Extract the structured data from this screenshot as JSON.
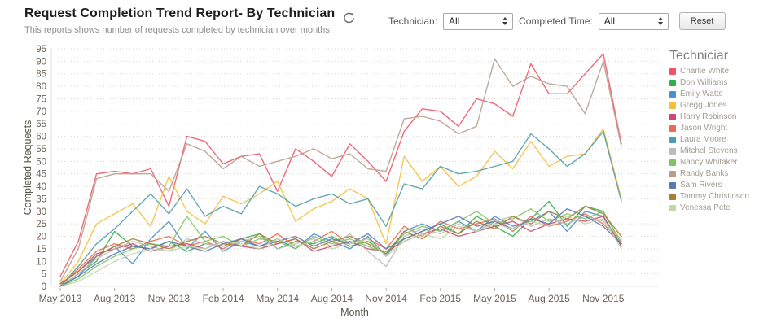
{
  "header": {
    "title": "Request Completion Trend Report- By Technician",
    "subtitle": "This reports shows number of requests completed by technician over months."
  },
  "filters": {
    "technician_label": "Technician:",
    "technician_value": "All",
    "completed_time_label": "Completed Time:",
    "completed_time_value": "All",
    "reset_label": "Reset"
  },
  "legend": {
    "title": "Techniciar",
    "position": "right"
  },
  "icons": {
    "refresh": "refresh-icon",
    "select_spinner": "up-down-arrows"
  },
  "chart_data": {
    "type": "line",
    "title": "",
    "xlabel": "Month",
    "ylabel": "Completed Requests",
    "ylim": [
      0,
      95
    ],
    "ytick_step": 5,
    "grid": "dotted-horizontal",
    "xtick_every": 3,
    "categories": [
      "May 2013",
      "Jun 2013",
      "Jul 2013",
      "Aug 2013",
      "Sep 2013",
      "Oct 2013",
      "Nov 2013",
      "Dec 2013",
      "Jan 2014",
      "Feb 2014",
      "Mar 2014",
      "Apr 2014",
      "May 2014",
      "Jun 2014",
      "Jul 2014",
      "Aug 2014",
      "Sep 2014",
      "Oct 2014",
      "Nov 2014",
      "Dec 2014",
      "Jan 2015",
      "Feb 2015",
      "Mar 2015",
      "Apr 2015",
      "May 2015",
      "Jun 2015",
      "Jul 2015",
      "Aug 2015",
      "Sep 2015",
      "Oct 2015",
      "Nov 2015",
      "Dec 2015"
    ],
    "series": [
      {
        "name": "Charlie White",
        "color": "#ef5366",
        "values": [
          4,
          18,
          45,
          46,
          45,
          47,
          32,
          60,
          58,
          49,
          52,
          53,
          38,
          55,
          50,
          44,
          57,
          50,
          42,
          62,
          71,
          70,
          64,
          75,
          73,
          68,
          89,
          77,
          77,
          85,
          93,
          57
        ]
      },
      {
        "name": "Don Williams",
        "color": "#2eb14c",
        "values": [
          0,
          5,
          10,
          22,
          16,
          15,
          18,
          14,
          17,
          16,
          19,
          21,
          15,
          18,
          17,
          20,
          16,
          18,
          13,
          19,
          22,
          25,
          21,
          28,
          24,
          20,
          27,
          34,
          24,
          32,
          30,
          17
        ]
      },
      {
        "name": "Emily Watts",
        "color": "#4b8fcc",
        "values": [
          0,
          4,
          12,
          16,
          9,
          19,
          26,
          15,
          22,
          14,
          18,
          16,
          19,
          15,
          21,
          18,
          15,
          20,
          12,
          22,
          25,
          22,
          26,
          22,
          28,
          24,
          26,
          30,
          22,
          30,
          28,
          16
        ]
      },
      {
        "name": "Gregg Jones",
        "color": "#f4bf3e",
        "values": [
          1,
          10,
          25,
          29,
          33,
          24,
          44,
          30,
          25,
          36,
          33,
          37,
          42,
          26,
          31,
          34,
          39,
          35,
          17,
          52,
          42,
          48,
          40,
          44,
          54,
          47,
          58,
          48,
          52,
          53,
          63,
          35
        ]
      },
      {
        "name": "Harry Robinson",
        "color": "#c64a74",
        "values": [
          1,
          6,
          13,
          15,
          17,
          14,
          16,
          17,
          15,
          18,
          16,
          15,
          17,
          19,
          14,
          16,
          18,
          15,
          14,
          18,
          21,
          23,
          20,
          22,
          24,
          26,
          22,
          25,
          27,
          26,
          28,
          16
        ]
      },
      {
        "name": "Jason Wright",
        "color": "#ed6a4d",
        "values": [
          0,
          7,
          14,
          17,
          15,
          18,
          20,
          16,
          18,
          15,
          19,
          17,
          21,
          16,
          18,
          22,
          17,
          19,
          15,
          24,
          20,
          26,
          23,
          25,
          27,
          22,
          28,
          24,
          26,
          29,
          25,
          18
        ]
      },
      {
        "name": "Laura Moore",
        "color": "#4d9daa",
        "values": [
          0,
          8,
          17,
          23,
          30,
          37,
          29,
          39,
          28,
          32,
          29,
          40,
          37,
          32,
          35,
          37,
          33,
          35,
          24,
          41,
          39,
          48,
          45,
          46,
          48,
          50,
          61,
          55,
          48,
          53,
          62,
          34
        ]
      },
      {
        "name": "Mitchel Stevens",
        "color": "#bcbcbc",
        "values": [
          0,
          5,
          11,
          15,
          18,
          16,
          14,
          19,
          17,
          16,
          18,
          20,
          15,
          17,
          19,
          16,
          21,
          14,
          8,
          20,
          23,
          21,
          25,
          22,
          26,
          28,
          24,
          27,
          25,
          28,
          26,
          19
        ]
      },
      {
        "name": "Nancy Whitaker",
        "color": "#7fc563",
        "values": [
          0,
          3,
          8,
          12,
          15,
          17,
          16,
          28,
          18,
          20,
          16,
          19,
          18,
          15,
          20,
          17,
          19,
          16,
          13,
          21,
          24,
          22,
          26,
          30,
          25,
          27,
          31,
          26,
          29,
          27,
          30,
          17
        ]
      },
      {
        "name": "Randy Banks",
        "color": "#b79d8b",
        "values": [
          2,
          15,
          43,
          45,
          45,
          45,
          38,
          57,
          54,
          47,
          52,
          48,
          50,
          52,
          55,
          51,
          53,
          47,
          46,
          67,
          68,
          66,
          61,
          64,
          91,
          80,
          84,
          81,
          80,
          69,
          90,
          56
        ]
      },
      {
        "name": "Sam Rivers",
        "color": "#5d77b0",
        "values": [
          0,
          4,
          9,
          13,
          16,
          15,
          18,
          16,
          14,
          17,
          19,
          16,
          18,
          20,
          16,
          19,
          17,
          21,
          15,
          19,
          22,
          25,
          28,
          24,
          26,
          23,
          27,
          25,
          31,
          28,
          24,
          17
        ]
      },
      {
        "name": "Tammy Christinson",
        "color": "#aa7e33",
        "values": [
          1,
          6,
          12,
          16,
          19,
          17,
          15,
          18,
          20,
          17,
          16,
          21,
          17,
          19,
          15,
          18,
          20,
          17,
          13,
          22,
          19,
          24,
          21,
          26,
          23,
          28,
          25,
          30,
          27,
          32,
          29,
          20
        ]
      },
      {
        "name": "Venessa Pete",
        "color": "#c3d6a6",
        "values": [
          0,
          2,
          6,
          10,
          13,
          15,
          14,
          16,
          15,
          18,
          17,
          15,
          19,
          16,
          18,
          15,
          17,
          19,
          12,
          18,
          21,
          19,
          24,
          22,
          25,
          23,
          26,
          24,
          28,
          25,
          27,
          15
        ]
      }
    ]
  }
}
